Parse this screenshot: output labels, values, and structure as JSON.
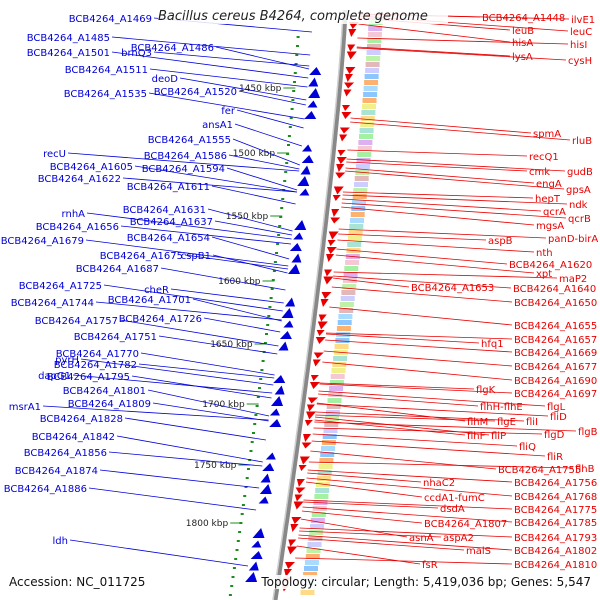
{
  "title": "Bacillus cereus B4264, complete genome",
  "accession": "Accession: NC_011725",
  "topology": "Topology: circular; Length: 5,419,036 bp; Genes: 5,547",
  "colors": {
    "forward": "#0000d8",
    "reverse": "#e80000",
    "backbone": "#888888",
    "tick": "#1e8c1e"
  },
  "kbp_ticks": [
    "1450 kbp",
    "1500 kbp",
    "1550 kbp",
    "1600 kbp",
    "1650 kbp",
    "1700 kbp",
    "1750 kbp",
    "1800 kbp"
  ],
  "left_labels": [
    "BCB4264_A1469",
    "BCB4264_A1485",
    "BCB4264_A1486",
    "BCB4264_A1501",
    "brnQ3",
    "BCB4264_A1511",
    "deoD",
    "BCB4264_A1535",
    "BCB4264_A1520",
    "fer",
    "ansA1",
    "BCB4264_A1555",
    "BCB4264_A1586",
    "recU",
    "BCB4264_A1594",
    "BCB4264_A1605",
    "BCB4264_A1622",
    "BCB4264_A1611",
    "BCB4264_A1631",
    "rnhA",
    "BCB4264_A1637",
    "BCB4264_A1656",
    "BCB4264_A1654",
    "BCB4264_A1679",
    "BCB4264_A1675",
    "cspB1",
    "BCB4264_A1687",
    "BCB4264_A1725",
    "cheR",
    "BCB4264_A1744",
    "BCB4264_A1701",
    "BCB4264_A1757",
    "BCB4264_A1726",
    "BCB4264_A1751",
    "BCB4264_A1770",
    "pyrH",
    "BCB4264_A1782",
    "dapG1",
    "BCB4264_A1795",
    "BCB4264_A1801",
    "msrA1",
    "BCB4264_A1809",
    "BCB4264_A1828",
    "BCB4264_A1842",
    "BCB4264_A1856",
    "BCB4264_A1874",
    "BCB4264_A1886",
    "ldh"
  ],
  "right_labels": [
    "BCB4264_A1448",
    "ilvE1",
    "leuB",
    "leuC",
    "hisA",
    "hisI",
    "lysA",
    "cysH",
    "spmA",
    "rluB",
    "recQ1",
    "cmk",
    "gudB",
    "engA",
    "gpsA",
    "hepT",
    "ndk",
    "qcrA",
    "qcrB",
    "mgsA",
    "aspB",
    "panD-birA",
    "nth",
    "BCB4264_A1620",
    "xpt",
    "maP2",
    "BCB4264_A1653",
    "BCB4264_A1640",
    "BCB4264_A1650",
    "BCB4264_A1655",
    "BCB4264_A1657",
    "hfq1",
    "BCB4264_A1669",
    "BCB4264_A1677",
    "BCB4264_A1690",
    "flgK",
    "BCB4264_A1697",
    "flhH-flhE",
    "flgL",
    "flhM",
    "flgE",
    "fliI",
    "fliD",
    "flhF",
    "fliP",
    "flgD",
    "flgB",
    "fliQ",
    "fliR",
    "BCB4264_A1755",
    "flhB",
    "nhaC2",
    "BCB4264_A1756",
    "ccdA1-fumC",
    "BCB4264_A1768",
    "dsdA",
    "BCB4264_A1775",
    "BCB4264_A1807",
    "BCB4264_A1785",
    "asnA",
    "aspA2",
    "BCB4264_A1793",
    "malS",
    "BCB4264_A1802",
    "fsR",
    "BCB4264_A1810"
  ]
}
